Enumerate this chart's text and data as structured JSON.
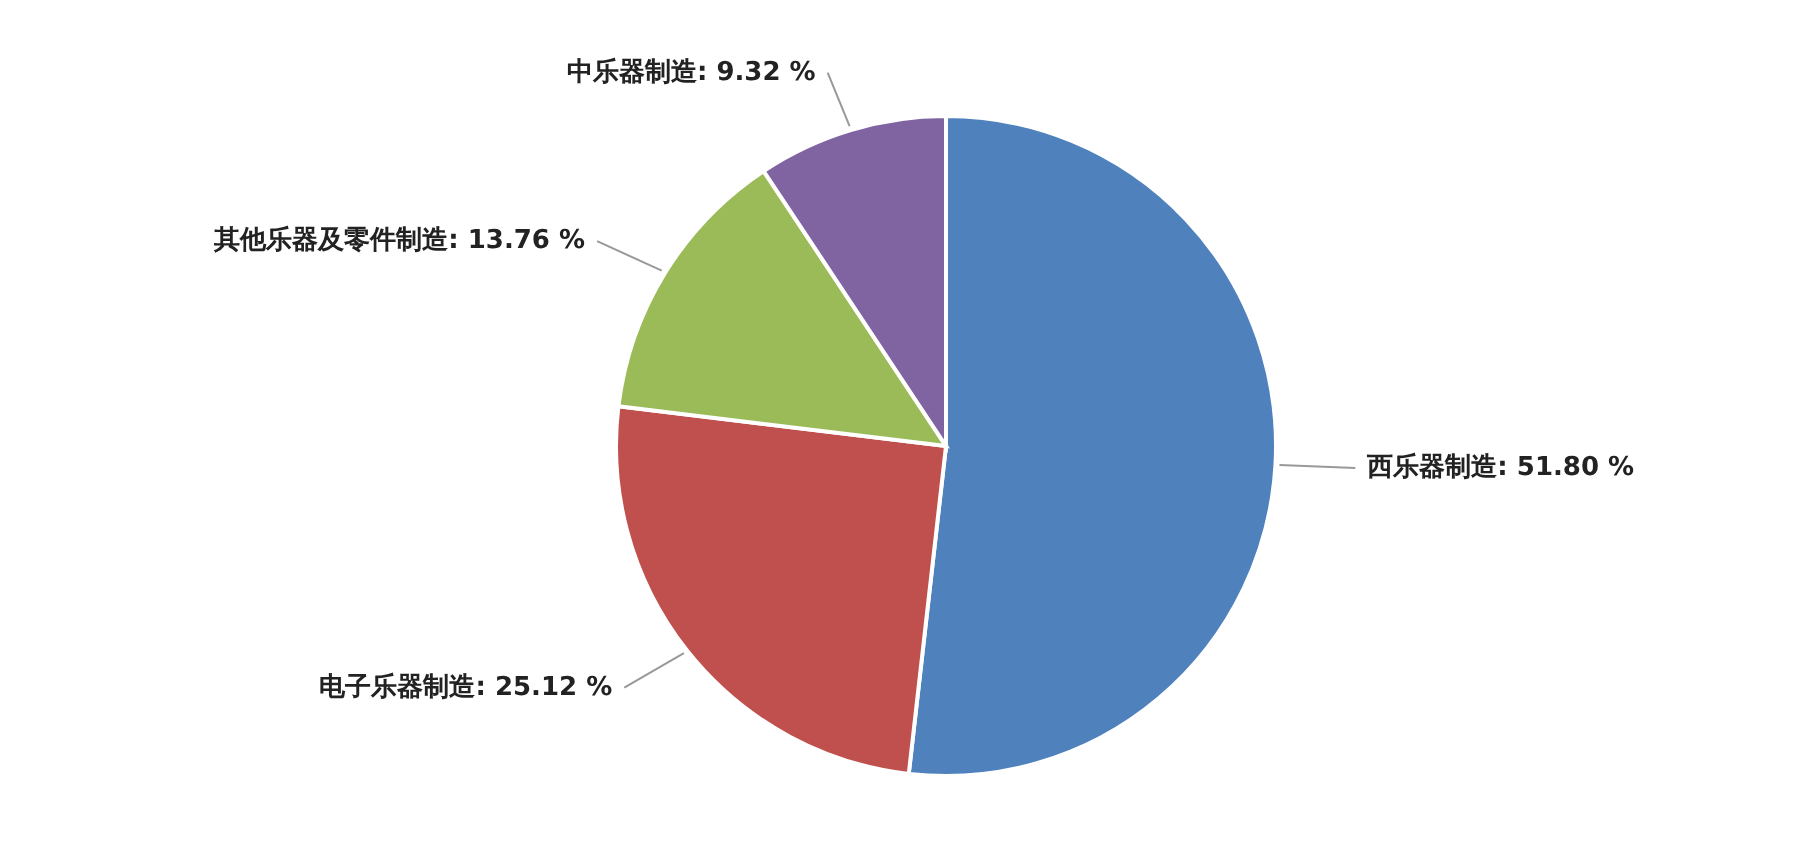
{
  "chart_data": {
    "type": "pie",
    "categories": [
      "西乐器制造",
      "电子乐器制造",
      "其他乐器及零件制造",
      "中乐器制造"
    ],
    "values": [
      51.8,
      25.12,
      13.76,
      9.32
    ],
    "value_labels": [
      "51.80 %",
      "25.12 %",
      "13.76 %",
      "9.32 %"
    ],
    "colors": [
      "#4f81bd",
      "#c0504d",
      "#9bbb59",
      "#8064a2"
    ],
    "legend": false
  }
}
